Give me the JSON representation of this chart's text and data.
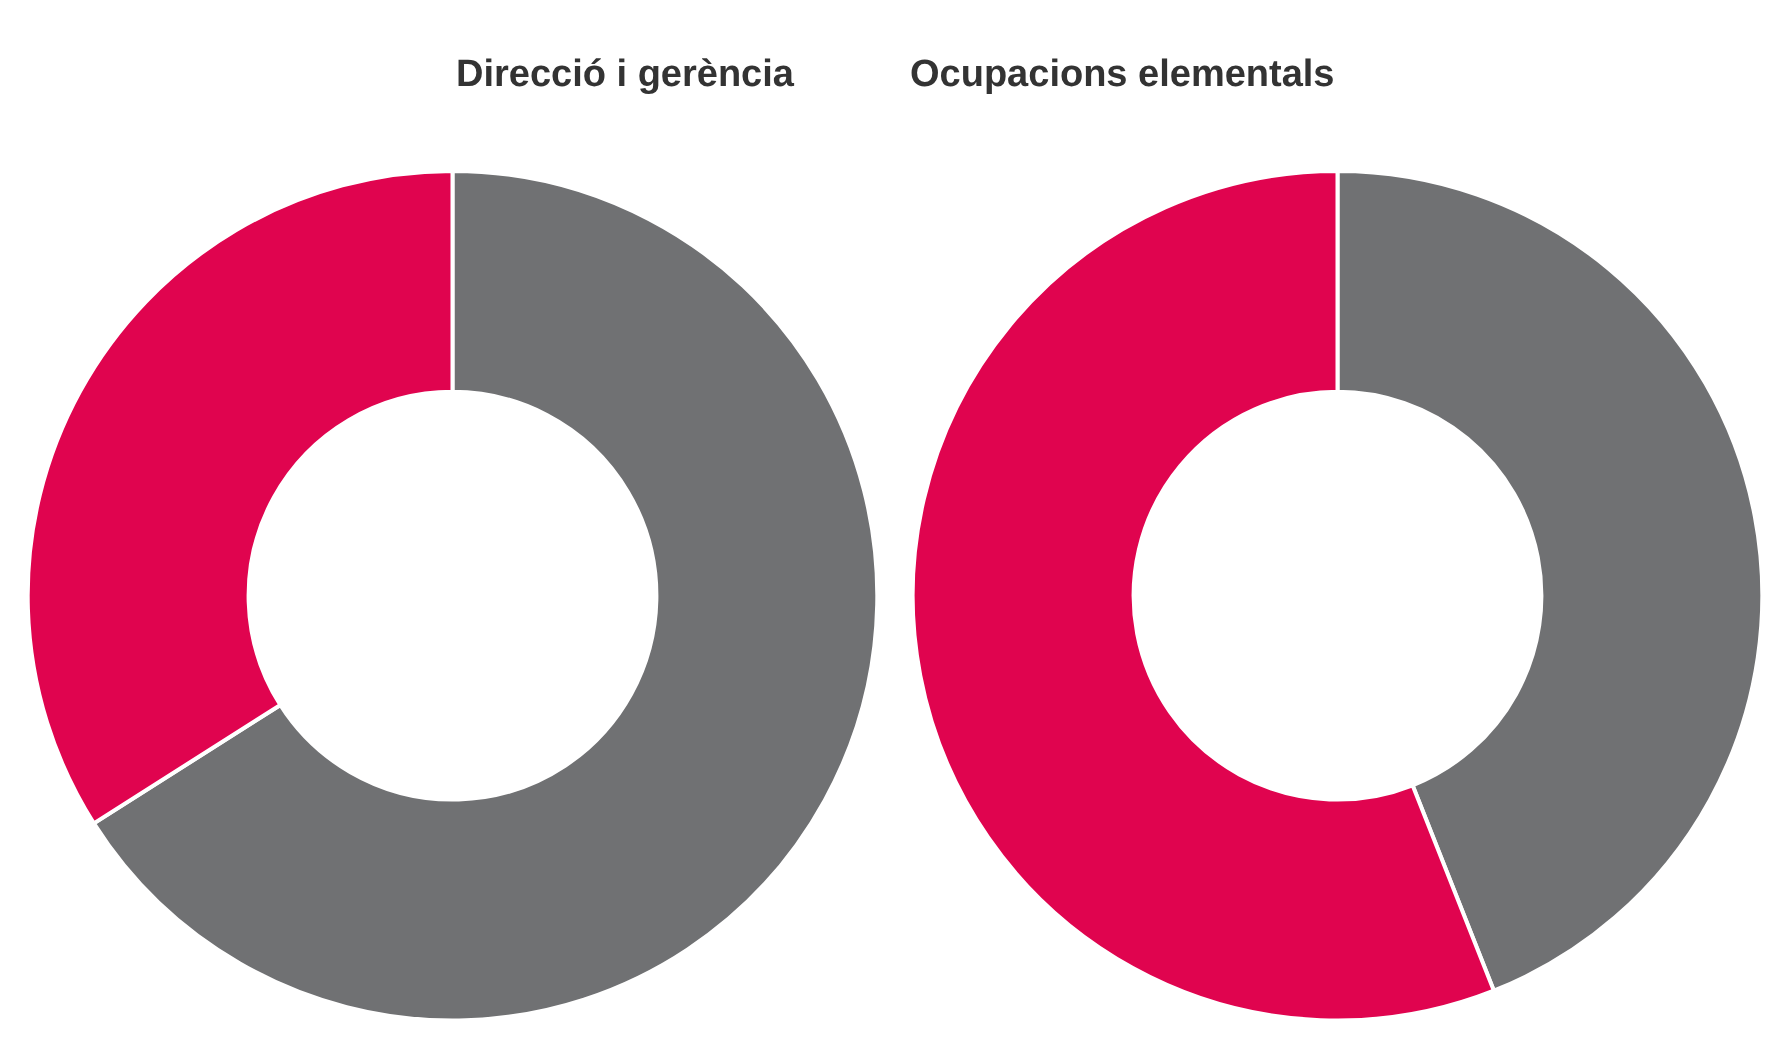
{
  "chart_data": [
    {
      "type": "donut",
      "title": "Direcció i gerència",
      "categories": [
        null,
        null
      ],
      "values": [
        66,
        34
      ],
      "colors": [
        "#707173",
        "#e0044f"
      ]
    },
    {
      "type": "donut",
      "title": "Ocupacions elementals",
      "categories": [
        null,
        null
      ],
      "values": [
        44,
        56
      ],
      "colors": [
        "#707173",
        "#e0044f"
      ]
    }
  ]
}
